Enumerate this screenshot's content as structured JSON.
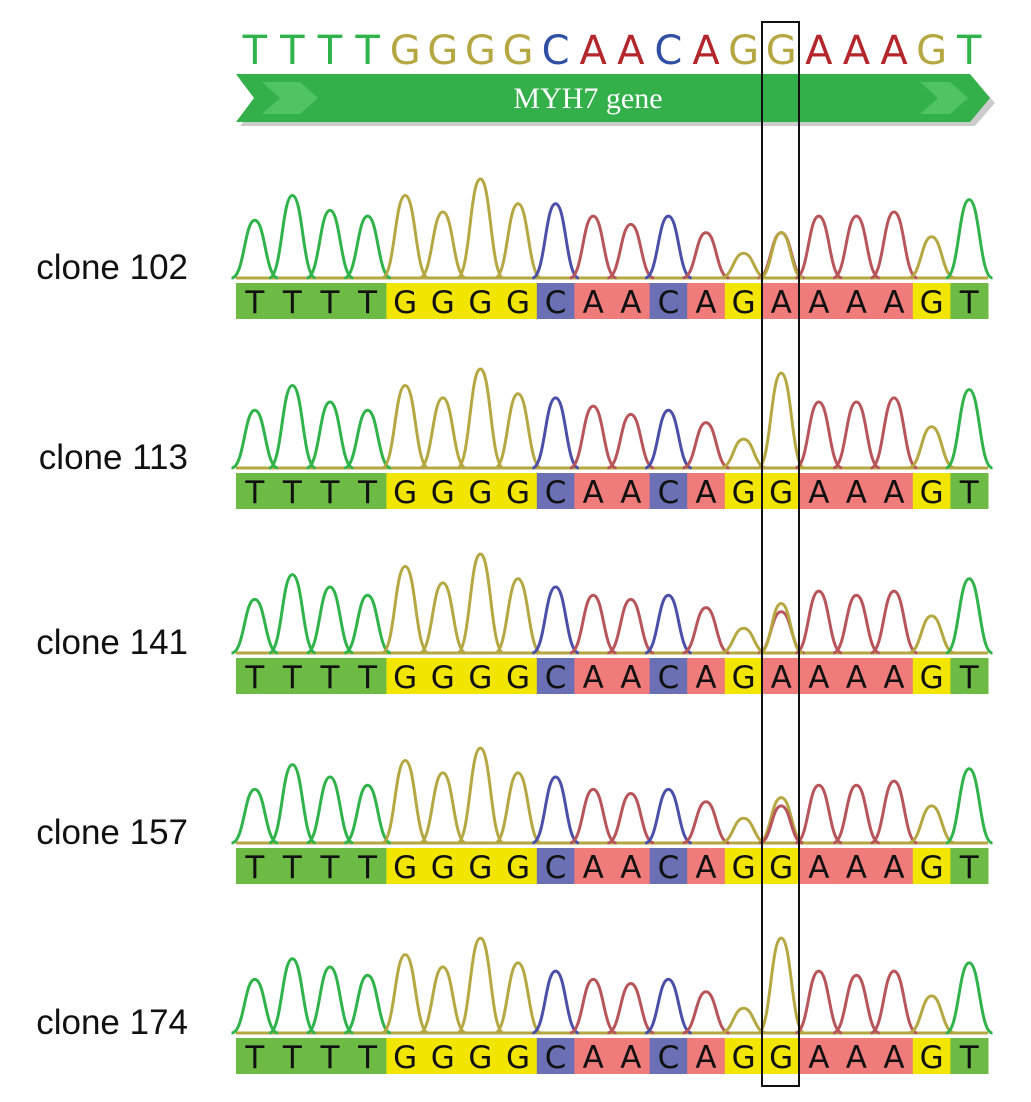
{
  "figure": {
    "reference_sequence": "TTTTGGGGCAACAGGAAAGT",
    "gene_label": "MYH7 gene",
    "highlight_position": 15,
    "colors": {
      "T": "#2fb34a",
      "G": "#b5a843",
      "C": "#2e4fa3",
      "A": "#b3262b"
    },
    "trace_colors": {
      "T": "#2fb34a",
      "G": "#b5a843",
      "C": "#4b4fa8",
      "A": "#b8555a"
    },
    "base_call_colors": {
      "T": "#6dbb45",
      "G": "#f2e500",
      "C": "#6b6fb4",
      "A": "#f07b7b"
    },
    "gene_arrow_color": "#34b04a",
    "clones": [
      {
        "label": "clone 102",
        "sequence": "TTTTGGGGCAACAGAAAAGT",
        "call_at_highlight": "A",
        "peaks": [
          0.7,
          1.0,
          0.82,
          0.75,
          1.0,
          0.8,
          1.2,
          0.9,
          0.9,
          0.75,
          0.65,
          0.75,
          0.55,
          0.3,
          0.55,
          0.75,
          0.75,
          0.8,
          0.5,
          0.95
        ],
        "secondary_peak": {
          "base": "G",
          "height": 0.55
        }
      },
      {
        "label": "clone 113",
        "sequence": "TTTTGGGGCAACAGGAAAGT",
        "call_at_highlight": "G",
        "peaks": [
          0.7,
          1.0,
          0.8,
          0.7,
          1.0,
          0.85,
          1.2,
          0.9,
          0.85,
          0.75,
          0.65,
          0.7,
          0.55,
          0.35,
          1.15,
          0.8,
          0.8,
          0.85,
          0.5,
          0.95
        ],
        "secondary_peak": null
      },
      {
        "label": "clone 141",
        "sequence": "TTTTGGGGCAACAGAAAAGT",
        "call_at_highlight": "A",
        "peaks": [
          0.65,
          0.95,
          0.8,
          0.7,
          1.05,
          0.85,
          1.2,
          0.9,
          0.8,
          0.7,
          0.65,
          0.7,
          0.55,
          0.3,
          0.5,
          0.75,
          0.7,
          0.75,
          0.45,
          0.9
        ],
        "secondary_peak": {
          "base": "G",
          "height": 0.6
        }
      },
      {
        "label": "clone 157",
        "sequence": "TTTTGGGGCAACAGGAAAGT",
        "call_at_highlight": "G",
        "peaks": [
          0.65,
          0.95,
          0.8,
          0.7,
          1.0,
          0.85,
          1.15,
          0.85,
          0.8,
          0.65,
          0.6,
          0.65,
          0.5,
          0.3,
          0.55,
          0.7,
          0.7,
          0.75,
          0.45,
          0.9
        ],
        "secondary_peak": {
          "base": "A",
          "height": 0.45
        }
      },
      {
        "label": "clone 174",
        "sequence": "TTTTGGGGCAACAGGAAAGT",
        "call_at_highlight": "G",
        "peaks": [
          0.65,
          0.9,
          0.8,
          0.7,
          0.95,
          0.8,
          1.15,
          0.85,
          0.75,
          0.65,
          0.6,
          0.65,
          0.5,
          0.3,
          1.15,
          0.75,
          0.7,
          0.75,
          0.45,
          0.85
        ],
        "secondary_peak": null
      }
    ]
  }
}
